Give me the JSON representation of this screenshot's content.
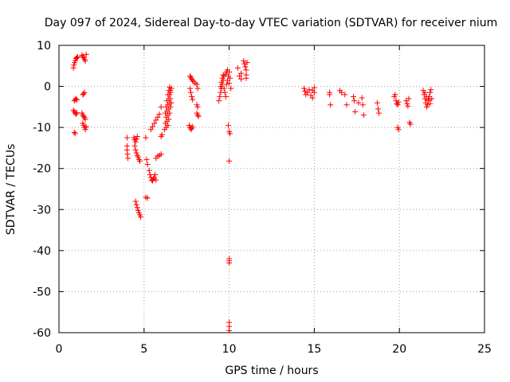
{
  "chart_data": {
    "type": "scatter",
    "title": "Day 097 of 2024, Sidereal Day-to-day VTEC variation (SDTVAR) for receiver nium",
    "xlabel": "GPS time / hours",
    "ylabel": "SDTVAR / TECUs",
    "xlim": [
      0,
      25
    ],
    "ylim": [
      -60,
      10
    ],
    "x_ticks": [
      0,
      5,
      10,
      15,
      20,
      25
    ],
    "y_ticks": [
      10,
      0,
      -10,
      -20,
      -30,
      -40,
      -50,
      -60
    ],
    "grid": true,
    "marker": "+",
    "color": "#ff0000",
    "series": [
      {
        "name": "SDTVAR",
        "points": [
          [
            0.85,
            4.5
          ],
          [
            0.88,
            5.2
          ],
          [
            0.92,
            5.8
          ],
          [
            0.96,
            6.3
          ],
          [
            1.0,
            6.8
          ],
          [
            1.05,
            7.0
          ],
          [
            1.1,
            7.2
          ],
          [
            0.9,
            -3.5
          ],
          [
            0.95,
            -3.2
          ],
          [
            1.0,
            -3.0
          ],
          [
            1.05,
            -3.3
          ],
          [
            0.85,
            -5.8
          ],
          [
            0.9,
            -6.2
          ],
          [
            0.95,
            -6.5
          ],
          [
            1.0,
            -6.8
          ],
          [
            1.05,
            -6.4
          ],
          [
            0.9,
            -11.2
          ],
          [
            0.95,
            -11.5
          ],
          [
            1.35,
            7.6
          ],
          [
            1.4,
            7.3
          ],
          [
            1.45,
            7.0
          ],
          [
            1.5,
            6.6
          ],
          [
            1.55,
            6.2
          ],
          [
            1.6,
            7.8
          ],
          [
            1.4,
            -2.0
          ],
          [
            1.45,
            -1.8
          ],
          [
            1.5,
            -1.5
          ],
          [
            1.35,
            -6.5
          ],
          [
            1.4,
            -7.0
          ],
          [
            1.45,
            -7.3
          ],
          [
            1.5,
            -7.6
          ],
          [
            1.55,
            -8.0
          ],
          [
            1.4,
            -9.0
          ],
          [
            1.45,
            -9.5
          ],
          [
            1.5,
            -10.0
          ],
          [
            1.55,
            -10.5
          ],
          [
            1.6,
            -9.8
          ],
          [
            4.0,
            -12.5
          ],
          [
            4.0,
            -14.5
          ],
          [
            4.0,
            -15.5
          ],
          [
            4.02,
            -16.5
          ],
          [
            4.05,
            -17.5
          ],
          [
            4.4,
            -12.5
          ],
          [
            4.45,
            -13.0
          ],
          [
            4.5,
            -13.5
          ],
          [
            4.55,
            -12.8
          ],
          [
            4.6,
            -12.2
          ],
          [
            4.45,
            -14.5
          ],
          [
            4.5,
            -15.5
          ],
          [
            4.55,
            -16.2
          ],
          [
            4.6,
            -16.8
          ],
          [
            4.65,
            -17.2
          ],
          [
            4.7,
            -17.8
          ],
          [
            4.75,
            -18.2
          ],
          [
            4.5,
            -28.0
          ],
          [
            4.55,
            -28.8
          ],
          [
            4.6,
            -29.5
          ],
          [
            4.65,
            -30.2
          ],
          [
            4.7,
            -30.8
          ],
          [
            4.75,
            -31.3
          ],
          [
            4.8,
            -31.8
          ],
          [
            5.1,
            -12.5
          ],
          [
            5.15,
            -17.8
          ],
          [
            5.1,
            -27.0
          ],
          [
            5.2,
            -27.2
          ],
          [
            5.2,
            -19.0
          ],
          [
            5.3,
            -20.5
          ],
          [
            5.35,
            -21.5
          ],
          [
            5.4,
            -22.2
          ],
          [
            5.45,
            -22.8
          ],
          [
            5.5,
            -23.0
          ],
          [
            5.55,
            -22.5
          ],
          [
            5.6,
            -22.2
          ],
          [
            5.65,
            -21.5
          ],
          [
            5.7,
            -22.8
          ],
          [
            5.7,
            -17.5
          ],
          [
            5.8,
            -17.0
          ],
          [
            5.9,
            -16.8
          ],
          [
            6.0,
            -16.5
          ],
          [
            5.4,
            -10.5
          ],
          [
            5.5,
            -9.8
          ],
          [
            5.6,
            -9.0
          ],
          [
            5.7,
            -8.2
          ],
          [
            5.8,
            -7.5
          ],
          [
            5.9,
            -6.8
          ],
          [
            6.0,
            -5.0
          ],
          [
            6.0,
            -12.2
          ],
          [
            6.05,
            -11.8
          ],
          [
            6.2,
            -10.5
          ],
          [
            6.25,
            -9.0
          ],
          [
            6.3,
            -7.5
          ],
          [
            6.35,
            -6.0
          ],
          [
            6.4,
            -4.5
          ],
          [
            6.45,
            -3.0
          ],
          [
            6.5,
            -2.0
          ],
          [
            6.55,
            -1.0
          ],
          [
            6.6,
            -0.5
          ],
          [
            6.25,
            -6.5
          ],
          [
            6.3,
            -5.0
          ],
          [
            6.35,
            -3.5
          ],
          [
            6.4,
            -2.0
          ],
          [
            6.45,
            -1.0
          ],
          [
            6.5,
            -0.2
          ],
          [
            6.55,
            -1.5
          ],
          [
            6.3,
            -10.0
          ],
          [
            6.35,
            -8.5
          ],
          [
            6.4,
            -7.0
          ],
          [
            6.45,
            -5.5
          ],
          [
            6.5,
            -4.0
          ],
          [
            6.55,
            -3.0
          ],
          [
            6.4,
            -9.5
          ],
          [
            6.45,
            -8.0
          ],
          [
            6.5,
            -6.5
          ],
          [
            6.55,
            -5.0
          ],
          [
            6.6,
            -4.0
          ],
          [
            7.7,
            2.5
          ],
          [
            7.75,
            2.2
          ],
          [
            7.8,
            1.8
          ],
          [
            7.85,
            1.5
          ],
          [
            7.9,
            1.2
          ],
          [
            8.0,
            0.8
          ],
          [
            7.7,
            -0.5
          ],
          [
            7.75,
            -1.5
          ],
          [
            7.8,
            -2.5
          ],
          [
            7.85,
            -3.2
          ],
          [
            7.65,
            -9.5
          ],
          [
            7.7,
            -10.0
          ],
          [
            7.75,
            -10.5
          ],
          [
            7.8,
            -10.2
          ],
          [
            7.85,
            -9.8
          ],
          [
            8.1,
            0.5
          ],
          [
            8.15,
            -0.5
          ],
          [
            8.1,
            -4.5
          ],
          [
            8.15,
            -5.0
          ],
          [
            8.1,
            -6.5
          ],
          [
            8.15,
            -7.0
          ],
          [
            8.2,
            -7.3
          ],
          [
            9.4,
            -3.5
          ],
          [
            9.45,
            -2.5
          ],
          [
            9.5,
            -1.5
          ],
          [
            9.55,
            -0.5
          ],
          [
            9.6,
            0.5
          ],
          [
            9.65,
            1.5
          ],
          [
            9.7,
            2.5
          ],
          [
            9.8,
            3.0
          ],
          [
            9.85,
            3.5
          ],
          [
            9.9,
            4.0
          ],
          [
            9.5,
            0.0
          ],
          [
            9.55,
            1.0
          ],
          [
            9.6,
            2.0
          ],
          [
            9.65,
            2.8
          ],
          [
            9.7,
            -0.5
          ],
          [
            9.75,
            -1.5
          ],
          [
            9.8,
            -2.5
          ],
          [
            9.85,
            0.5
          ],
          [
            9.9,
            1.5
          ],
          [
            9.95,
            2.5
          ],
          [
            10.0,
            0.8
          ],
          [
            10.0,
            3.5
          ],
          [
            10.05,
            2.0
          ],
          [
            10.1,
            -0.5
          ],
          [
            9.95,
            -9.5
          ],
          [
            10.0,
            -11.0
          ],
          [
            10.05,
            -11.5
          ],
          [
            10.0,
            -18.2
          ],
          [
            10.0,
            -42.0
          ],
          [
            10.0,
            -42.5
          ],
          [
            10.0,
            -43.0
          ],
          [
            10.0,
            -57.5
          ],
          [
            10.0,
            -58.5
          ],
          [
            10.0,
            -59.5
          ],
          [
            10.5,
            4.5
          ],
          [
            10.6,
            2.5
          ],
          [
            10.7,
            1.8
          ],
          [
            10.7,
            3.2
          ],
          [
            10.85,
            6.2
          ],
          [
            10.9,
            5.5
          ],
          [
            10.95,
            4.8
          ],
          [
            11.0,
            4.0
          ],
          [
            11.0,
            2.8
          ],
          [
            11.0,
            2.0
          ],
          [
            11.05,
            5.8
          ],
          [
            14.4,
            -0.5
          ],
          [
            14.45,
            -1.2
          ],
          [
            14.5,
            -2.0
          ],
          [
            14.6,
            -1.5
          ],
          [
            14.7,
            -0.8
          ],
          [
            14.8,
            -2.2
          ],
          [
            14.9,
            -1.0
          ],
          [
            15.0,
            -0.3
          ],
          [
            15.0,
            -1.5
          ],
          [
            14.9,
            -2.8
          ],
          [
            15.9,
            -1.5
          ],
          [
            15.9,
            -2.0
          ],
          [
            15.95,
            -4.5
          ],
          [
            16.5,
            -1.0
          ],
          [
            16.6,
            -1.5
          ],
          [
            16.8,
            -2.0
          ],
          [
            16.9,
            -4.5
          ],
          [
            17.3,
            -2.5
          ],
          [
            17.35,
            -3.5
          ],
          [
            17.4,
            -6.2
          ],
          [
            17.6,
            -4.0
          ],
          [
            17.8,
            -2.8
          ],
          [
            17.85,
            -4.5
          ],
          [
            17.9,
            -7.0
          ],
          [
            18.7,
            -4.0
          ],
          [
            18.75,
            -5.5
          ],
          [
            18.8,
            -6.5
          ],
          [
            19.7,
            -2.5
          ],
          [
            19.75,
            -2.0
          ],
          [
            19.8,
            -3.5
          ],
          [
            19.85,
            -4.2
          ],
          [
            19.9,
            -4.5
          ],
          [
            19.95,
            -3.8
          ],
          [
            19.9,
            -10.0
          ],
          [
            19.95,
            -10.5
          ],
          [
            20.4,
            -3.5
          ],
          [
            20.45,
            -4.2
          ],
          [
            20.5,
            -4.8
          ],
          [
            20.55,
            -3.0
          ],
          [
            20.6,
            -8.8
          ],
          [
            20.65,
            -9.2
          ],
          [
            21.4,
            -1.0
          ],
          [
            21.45,
            -2.0
          ],
          [
            21.5,
            -3.0
          ],
          [
            21.55,
            -4.0
          ],
          [
            21.6,
            -5.0
          ],
          [
            21.65,
            -4.5
          ],
          [
            21.7,
            -3.5
          ],
          [
            21.75,
            -2.5
          ],
          [
            21.8,
            -1.5
          ],
          [
            21.85,
            -0.8
          ],
          [
            21.5,
            -1.5
          ],
          [
            21.6,
            -2.5
          ],
          [
            21.7,
            -3.2
          ],
          [
            21.8,
            -4.2
          ],
          [
            21.9,
            -3.0
          ]
        ]
      }
    ]
  }
}
